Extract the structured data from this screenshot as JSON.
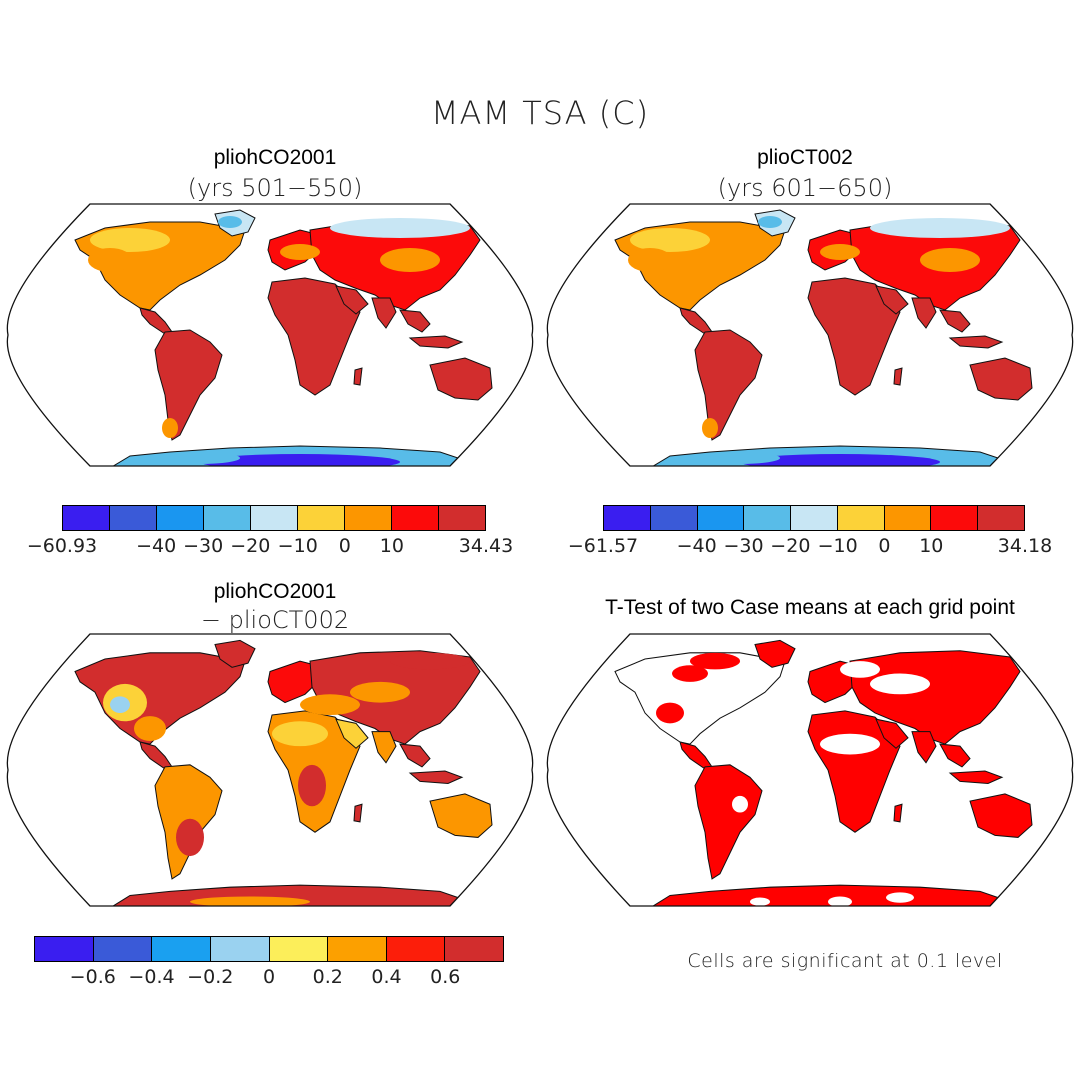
{
  "figure_title": "MAM TSA (C)",
  "panels": {
    "top_left": {
      "title": "pliohCO2001",
      "subtitle": "(yrs 501−550)",
      "legend": {
        "colors": [
          "#3a1ef0",
          "#3a5ad8",
          "#1a96f0",
          "#58bce8",
          "#c8e6f4",
          "#fcd238",
          "#fc9600",
          "#fc0a0a",
          "#d22d2d"
        ],
        "labels": [
          "−60.93",
          "−40",
          "−30",
          "−20",
          "−10",
          "0",
          "10",
          "34.43"
        ]
      }
    },
    "top_right": {
      "title": "plioCT002",
      "subtitle": "(yrs 601−650)",
      "legend": {
        "colors": [
          "#3a1ef0",
          "#3a5ad8",
          "#1a96f0",
          "#58bce8",
          "#c8e6f4",
          "#fcd238",
          "#fc9600",
          "#fc0a0a",
          "#d22d2d"
        ],
        "labels": [
          "−61.57",
          "−40",
          "−30",
          "−20",
          "−10",
          "0",
          "10",
          "34.18"
        ]
      }
    },
    "bottom_left": {
      "title": "pliohCO2001",
      "subtitle": "− plioCT002",
      "legend": {
        "colors": [
          "#3a1ef0",
          "#3a5ad8",
          "#1aa0f0",
          "#9ad2f0",
          "#fcee5a",
          "#fca000",
          "#fc1e0a",
          "#d22d2d"
        ],
        "labels": [
          "−0.6",
          "−0.4",
          "−0.2",
          "0",
          "0.2",
          "0.4",
          "0.6"
        ]
      }
    },
    "bottom_right": {
      "title": "T-Test of two Case means at each grid point",
      "note": "Cells are significant at 0.1 level"
    }
  },
  "colors": {
    "warm": "#d22d2d",
    "hot_red": "#fc0a0a",
    "orange": "#fc9600",
    "yellow": "#fcd238",
    "light_blue": "#c8e6f4",
    "mid_blue": "#58bce8",
    "deep_blue": "#3a1ef0",
    "significant": "#ff0000"
  }
}
